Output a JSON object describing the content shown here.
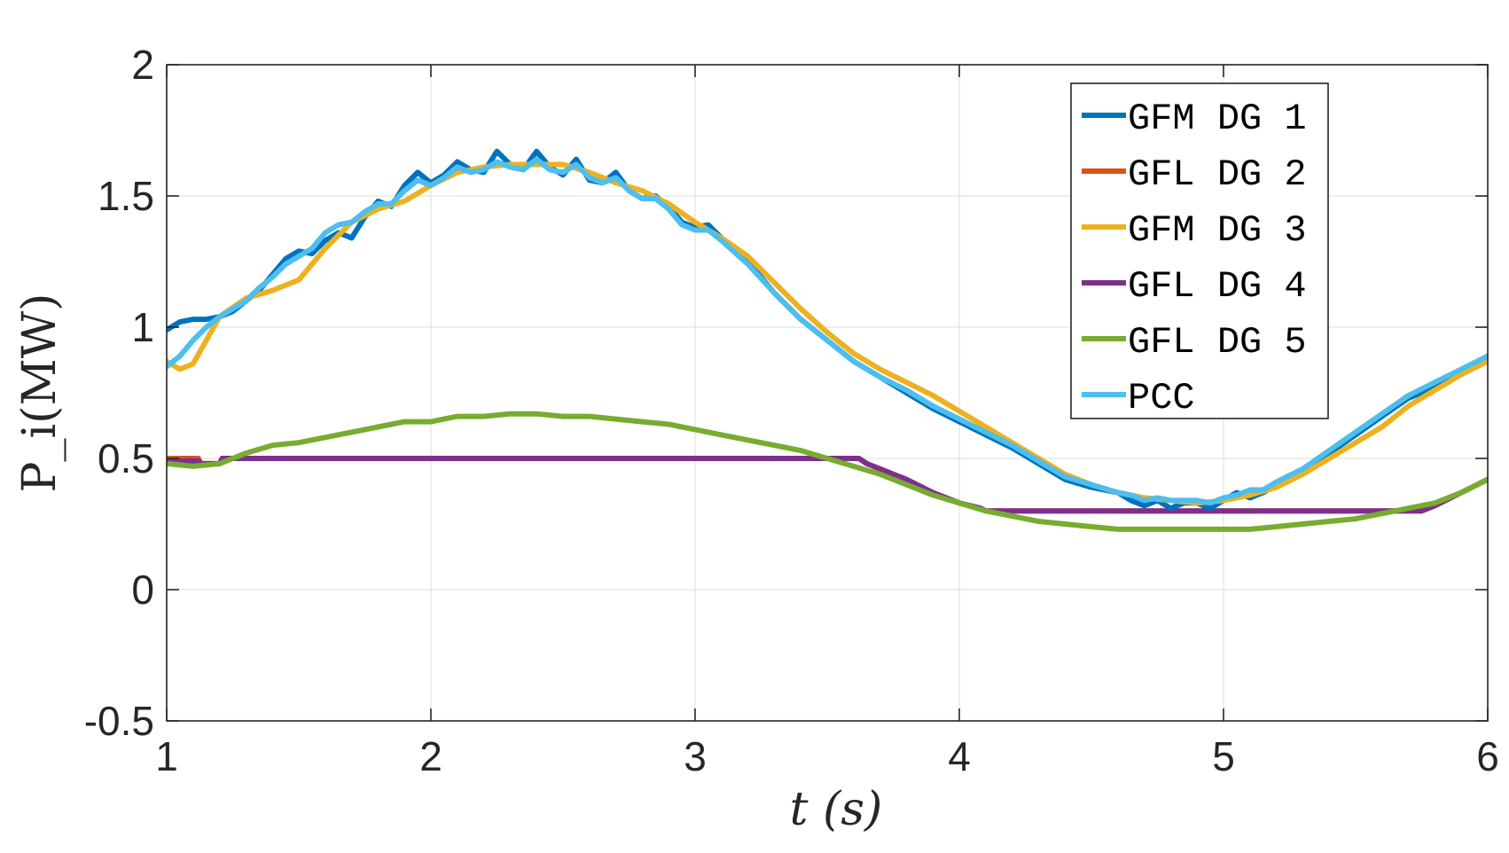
{
  "chart_data": {
    "type": "line",
    "xlabel": "t (s)",
    "ylabel": "P_i(MW)",
    "xlim": [
      1,
      6
    ],
    "ylim": [
      -0.5,
      2
    ],
    "xticks": [
      "1",
      "2",
      "3",
      "4",
      "5",
      "6"
    ],
    "yticks": [
      "-0.5",
      "0",
      "0.5",
      "1",
      "1.5",
      "2"
    ],
    "xtick_values": [
      1,
      2,
      3,
      4,
      5,
      6
    ],
    "ytick_values": [
      -0.5,
      0,
      0.5,
      1,
      1.5,
      2
    ],
    "grid": true,
    "legend_position": "top-right",
    "series": [
      {
        "name": "GFM DG 1",
        "color": "#0072BD",
        "x": [
          1.0,
          1.05,
          1.1,
          1.15,
          1.2,
          1.25,
          1.3,
          1.35,
          1.4,
          1.45,
          1.5,
          1.55,
          1.6,
          1.65,
          1.7,
          1.75,
          1.8,
          1.85,
          1.9,
          1.95,
          2.0,
          2.05,
          2.1,
          2.15,
          2.2,
          2.25,
          2.3,
          2.35,
          2.4,
          2.45,
          2.5,
          2.55,
          2.6,
          2.65,
          2.7,
          2.75,
          2.8,
          2.85,
          2.9,
          2.95,
          3.0,
          3.05,
          3.1,
          3.2,
          3.3,
          3.4,
          3.5,
          3.6,
          3.7,
          3.8,
          3.9,
          4.0,
          4.1,
          4.2,
          4.3,
          4.4,
          4.5,
          4.6,
          4.65,
          4.7,
          4.75,
          4.8,
          4.85,
          4.9,
          4.95,
          5.0,
          5.05,
          5.1,
          5.15,
          5.2,
          5.3,
          5.4,
          5.5,
          5.6,
          5.7,
          5.8,
          5.9,
          6.0
        ],
        "y": [
          0.99,
          1.02,
          1.03,
          1.03,
          1.04,
          1.06,
          1.1,
          1.14,
          1.2,
          1.26,
          1.29,
          1.28,
          1.33,
          1.36,
          1.34,
          1.42,
          1.48,
          1.46,
          1.54,
          1.59,
          1.55,
          1.58,
          1.63,
          1.6,
          1.59,
          1.67,
          1.62,
          1.6,
          1.67,
          1.61,
          1.58,
          1.64,
          1.56,
          1.55,
          1.59,
          1.52,
          1.49,
          1.5,
          1.46,
          1.4,
          1.38,
          1.39,
          1.34,
          1.25,
          1.13,
          1.03,
          0.95,
          0.87,
          0.81,
          0.75,
          0.69,
          0.64,
          0.59,
          0.54,
          0.48,
          0.42,
          0.39,
          0.37,
          0.34,
          0.32,
          0.34,
          0.31,
          0.33,
          0.33,
          0.31,
          0.34,
          0.37,
          0.35,
          0.37,
          0.4,
          0.45,
          0.52,
          0.59,
          0.66,
          0.73,
          0.77,
          0.82,
          0.89
        ]
      },
      {
        "name": "GFL DG 2",
        "color": "#D95319",
        "x": [
          1.0,
          1.12,
          1.13,
          1.2,
          1.21,
          3.62,
          3.65,
          3.8,
          3.9,
          4.0,
          4.08,
          4.1,
          5.75,
          5.8,
          5.9,
          6.0
        ],
        "y": [
          0.5,
          0.5,
          0.48,
          0.48,
          0.5,
          0.5,
          0.48,
          0.42,
          0.37,
          0.33,
          0.31,
          0.3,
          0.3,
          0.32,
          0.37,
          0.42
        ]
      },
      {
        "name": "GFM DG 3",
        "color": "#EDB120",
        "x": [
          1.0,
          1.05,
          1.1,
          1.15,
          1.2,
          1.3,
          1.4,
          1.5,
          1.6,
          1.7,
          1.8,
          1.9,
          2.0,
          2.1,
          2.2,
          2.3,
          2.4,
          2.5,
          2.6,
          2.7,
          2.8,
          2.9,
          3.0,
          3.1,
          3.2,
          3.3,
          3.4,
          3.5,
          3.6,
          3.7,
          3.8,
          3.9,
          4.0,
          4.1,
          4.2,
          4.3,
          4.4,
          4.5,
          4.6,
          4.7,
          4.8,
          4.9,
          5.0,
          5.1,
          5.2,
          5.3,
          5.4,
          5.5,
          5.6,
          5.7,
          5.8,
          5.9,
          6.0
        ],
        "y": [
          0.87,
          0.84,
          0.86,
          0.95,
          1.04,
          1.11,
          1.14,
          1.18,
          1.3,
          1.4,
          1.45,
          1.48,
          1.54,
          1.59,
          1.61,
          1.62,
          1.62,
          1.62,
          1.59,
          1.55,
          1.52,
          1.47,
          1.4,
          1.34,
          1.27,
          1.17,
          1.07,
          0.98,
          0.9,
          0.84,
          0.79,
          0.74,
          0.68,
          0.62,
          0.56,
          0.5,
          0.44,
          0.4,
          0.37,
          0.35,
          0.34,
          0.33,
          0.34,
          0.36,
          0.39,
          0.44,
          0.5,
          0.56,
          0.62,
          0.7,
          0.76,
          0.82,
          0.87
        ]
      },
      {
        "name": "GFL DG 4",
        "color": "#7E2F8E",
        "x": [
          1.0,
          1.12,
          1.13,
          1.2,
          1.21,
          3.62,
          3.65,
          3.8,
          3.9,
          4.0,
          4.08,
          4.1,
          5.75,
          5.8,
          5.9,
          6.0
        ],
        "y": [
          0.49,
          0.49,
          0.48,
          0.48,
          0.5,
          0.5,
          0.48,
          0.42,
          0.37,
          0.33,
          0.31,
          0.3,
          0.3,
          0.32,
          0.37,
          0.42
        ]
      },
      {
        "name": "GFL DG 5",
        "color": "#77AC30",
        "x": [
          1.0,
          1.1,
          1.2,
          1.3,
          1.4,
          1.5,
          1.6,
          1.7,
          1.8,
          1.9,
          2.0,
          2.1,
          2.2,
          2.3,
          2.4,
          2.5,
          2.6,
          2.7,
          2.8,
          2.9,
          3.0,
          3.1,
          3.2,
          3.3,
          3.4,
          3.5,
          3.6,
          3.7,
          3.8,
          3.9,
          4.0,
          4.1,
          4.2,
          4.3,
          4.4,
          4.5,
          4.6,
          4.7,
          4.8,
          4.9,
          5.0,
          5.1,
          5.2,
          5.3,
          5.4,
          5.5,
          5.6,
          5.7,
          5.8,
          5.9,
          6.0
        ],
        "y": [
          0.48,
          0.47,
          0.48,
          0.52,
          0.55,
          0.56,
          0.58,
          0.6,
          0.62,
          0.64,
          0.64,
          0.66,
          0.66,
          0.67,
          0.67,
          0.66,
          0.66,
          0.65,
          0.64,
          0.63,
          0.61,
          0.59,
          0.57,
          0.55,
          0.53,
          0.5,
          0.47,
          0.44,
          0.4,
          0.36,
          0.33,
          0.3,
          0.28,
          0.26,
          0.25,
          0.24,
          0.23,
          0.23,
          0.23,
          0.23,
          0.23,
          0.23,
          0.24,
          0.25,
          0.26,
          0.27,
          0.29,
          0.31,
          0.33,
          0.37,
          0.42
        ]
      },
      {
        "name": "PCC",
        "color": "#4DBEEE",
        "x": [
          1.0,
          1.05,
          1.1,
          1.15,
          1.2,
          1.25,
          1.3,
          1.35,
          1.4,
          1.45,
          1.5,
          1.55,
          1.6,
          1.65,
          1.7,
          1.75,
          1.8,
          1.85,
          1.9,
          1.95,
          2.0,
          2.05,
          2.1,
          2.15,
          2.2,
          2.25,
          2.3,
          2.35,
          2.4,
          2.45,
          2.5,
          2.55,
          2.6,
          2.65,
          2.7,
          2.75,
          2.8,
          2.85,
          2.9,
          2.95,
          3.0,
          3.05,
          3.1,
          3.2,
          3.3,
          3.4,
          3.5,
          3.6,
          3.7,
          3.8,
          3.9,
          4.0,
          4.1,
          4.2,
          4.3,
          4.4,
          4.5,
          4.6,
          4.65,
          4.7,
          4.75,
          4.8,
          4.85,
          4.9,
          4.95,
          5.0,
          5.05,
          5.1,
          5.15,
          5.2,
          5.3,
          5.4,
          5.5,
          5.6,
          5.7,
          5.8,
          5.9,
          6.0
        ],
        "y": [
          0.85,
          0.89,
          0.95,
          1.0,
          1.04,
          1.07,
          1.1,
          1.15,
          1.19,
          1.24,
          1.27,
          1.3,
          1.36,
          1.39,
          1.4,
          1.44,
          1.47,
          1.47,
          1.52,
          1.56,
          1.54,
          1.57,
          1.61,
          1.59,
          1.6,
          1.63,
          1.61,
          1.6,
          1.64,
          1.6,
          1.59,
          1.62,
          1.57,
          1.55,
          1.57,
          1.52,
          1.49,
          1.49,
          1.45,
          1.39,
          1.37,
          1.37,
          1.33,
          1.24,
          1.13,
          1.03,
          0.95,
          0.87,
          0.81,
          0.76,
          0.7,
          0.65,
          0.6,
          0.55,
          0.49,
          0.43,
          0.4,
          0.37,
          0.36,
          0.34,
          0.35,
          0.34,
          0.34,
          0.34,
          0.33,
          0.35,
          0.36,
          0.38,
          0.38,
          0.41,
          0.46,
          0.53,
          0.6,
          0.67,
          0.74,
          0.79,
          0.84,
          0.89
        ]
      }
    ]
  }
}
